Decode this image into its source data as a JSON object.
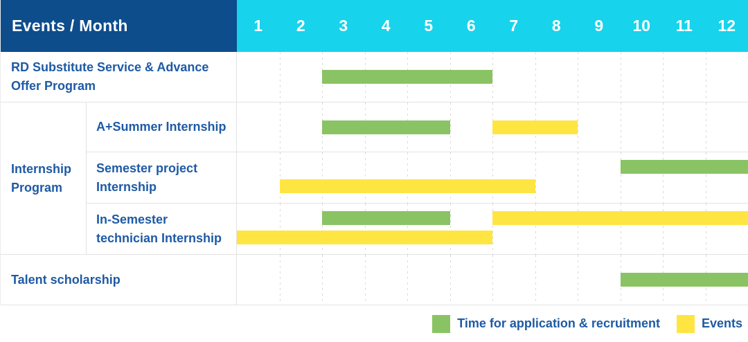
{
  "header": {
    "title": "Events / Month"
  },
  "colors": {
    "header_bg": "#0E4D8C",
    "months_bg": "#17D3EB",
    "label_text": "#1E5AA5",
    "application_green": "#8AC364",
    "event_yellow": "#FFE542",
    "gridline": "#D9D9D9",
    "row_border": "#E2E2E2"
  },
  "legend": {
    "application_label": "Time for application & recruitment",
    "events_label": "Events"
  },
  "chart_data": {
    "type": "bar",
    "subtype": "gantt",
    "title": "Events / Month",
    "xlabel": "Month",
    "x_ticks": [
      "1",
      "2",
      "3",
      "4",
      "5",
      "6",
      "7",
      "8",
      "9",
      "10",
      "11",
      "12"
    ],
    "x_range": [
      1,
      12
    ],
    "grid": "vertical-dashed",
    "legend_position": "bottom-right",
    "legend": [
      {
        "name": "Time for application & recruitment",
        "kind": "application",
        "color": "#8AC364"
      },
      {
        "name": "Events",
        "kind": "event",
        "color": "#FFE542"
      }
    ],
    "group_label": "Internship Program",
    "rows": [
      {
        "label": "RD Substitute Service & Advance Offer Program",
        "group": null,
        "lines": [
          [
            {
              "kind": "application",
              "start": 3,
              "end": 6
            }
          ]
        ]
      },
      {
        "label": "A+Summer Internship",
        "group": "Internship Program",
        "lines": [
          [
            {
              "kind": "application",
              "start": 3,
              "end": 5
            },
            {
              "kind": "event",
              "start": 7,
              "end": 8
            }
          ]
        ]
      },
      {
        "label": "Semester project Internship",
        "group": "Internship Program",
        "lines": [
          [
            {
              "kind": "application",
              "start": 10,
              "end": 12
            }
          ],
          [
            {
              "kind": "event",
              "start": 2,
              "end": 7
            }
          ]
        ]
      },
      {
        "label": "In-Semester technician Internship",
        "group": "Internship Program",
        "lines": [
          [
            {
              "kind": "application",
              "start": 3,
              "end": 5
            },
            {
              "kind": "event",
              "start": 7,
              "end": 12
            }
          ],
          [
            {
              "kind": "event",
              "start": 1,
              "end": 6
            }
          ]
        ]
      },
      {
        "label": "Talent scholarship",
        "group": null,
        "lines": [
          [
            {
              "kind": "application",
              "start": 10,
              "end": 12
            }
          ]
        ]
      }
    ]
  }
}
